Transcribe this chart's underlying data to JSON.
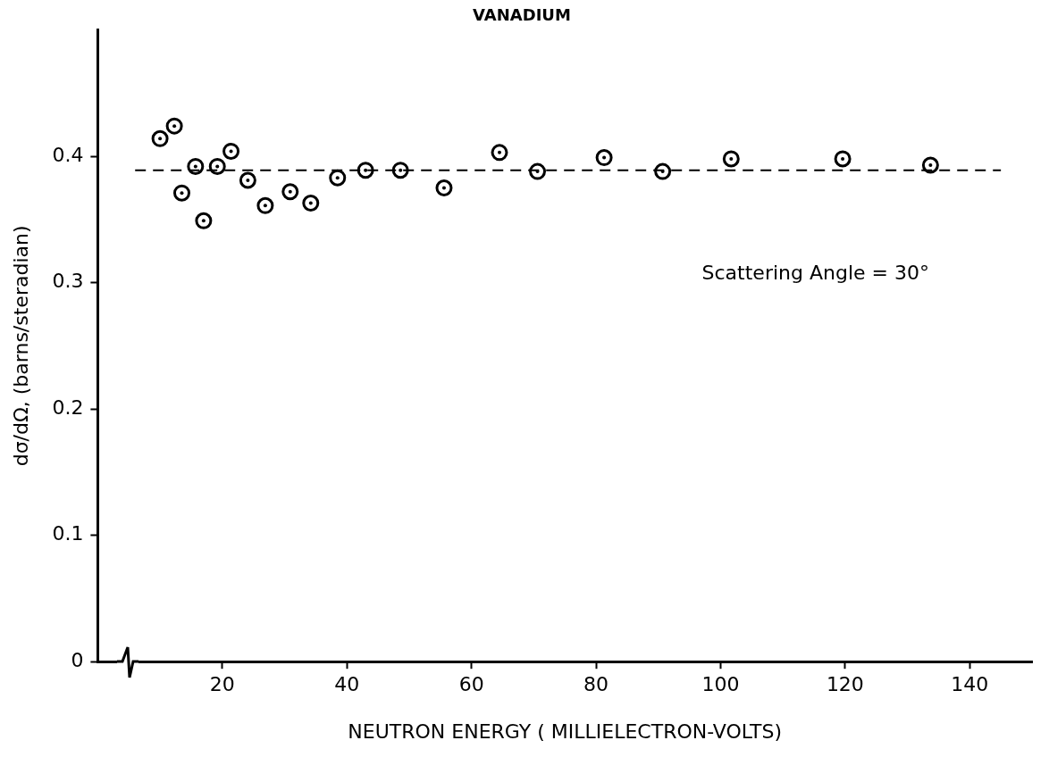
{
  "chart_data": {
    "type": "scatter",
    "title": "VANADIUM",
    "xlabel": "NEUTRON ENERGY ( MILLIELECTRON-VOLTS)",
    "ylabel": "dσ/dΩ, (barns/steradian)",
    "x": [
      10.0,
      12.3,
      13.5,
      15.7,
      17.0,
      19.2,
      21.4,
      24.1,
      26.9,
      30.9,
      34.2,
      38.5,
      43.0,
      48.6,
      55.6,
      64.5,
      70.6,
      81.3,
      90.7,
      101.7,
      119.6,
      133.7
    ],
    "values": [
      0.414,
      0.424,
      0.371,
      0.392,
      0.349,
      0.392,
      0.404,
      0.381,
      0.361,
      0.372,
      0.363,
      0.383,
      0.389,
      0.389,
      0.375,
      0.403,
      0.388,
      0.399,
      0.388,
      0.398,
      0.398,
      0.393
    ],
    "color": "#000000",
    "marker": "circle",
    "xlim": [
      0,
      150
    ],
    "xticks": [
      20,
      40,
      60,
      80,
      100,
      120,
      140
    ],
    "ylim": [
      0,
      0.5
    ],
    "yticks": [
      0,
      0.1,
      0.2,
      0.3,
      0.4
    ],
    "ref_lines": [
      {
        "axis": "y",
        "value": 0.389,
        "color": "#000000",
        "line_style": "dashed"
      }
    ],
    "annotations": [
      "Scattering Angle = 30°"
    ],
    "grid": false,
    "legend": false
  }
}
